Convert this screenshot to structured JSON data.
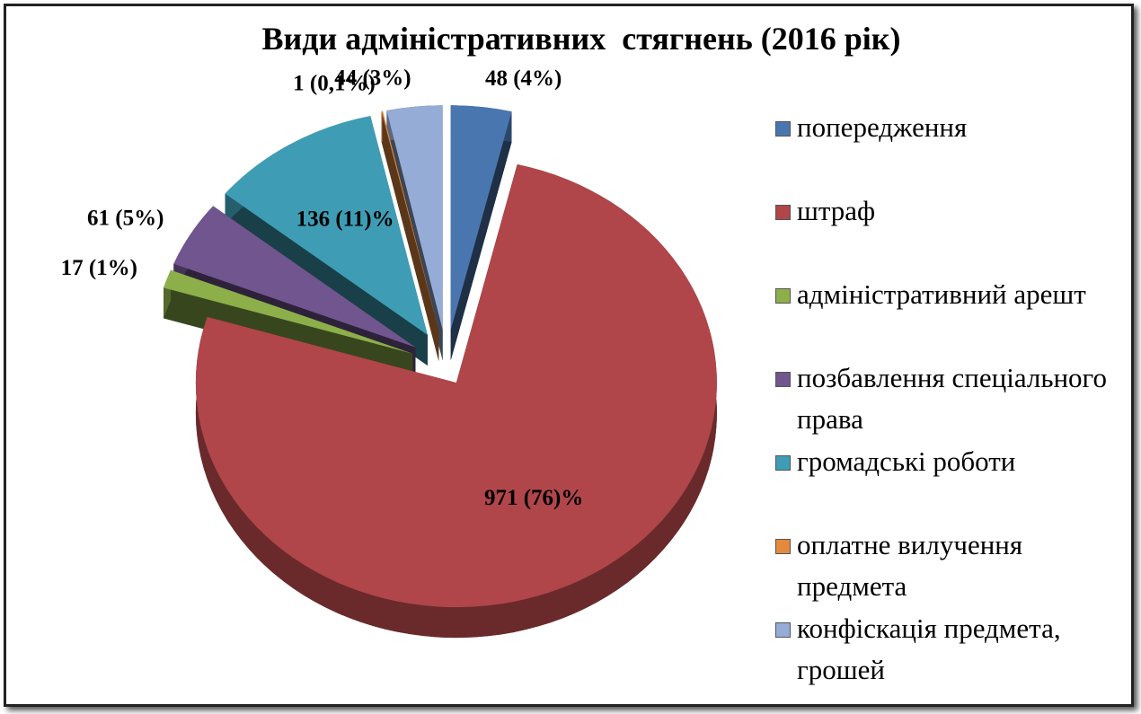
{
  "chart_data": {
    "type": "pie",
    "title": "Види адміністративних  стягнень (2016 рік)",
    "categories": [
      "попередження",
      "штраф",
      "адміністративний арешт",
      "позбавлення спеціального права",
      "громадські роботи",
      "оплатне вилучення предмета",
      "конфіскація предмета, грошей"
    ],
    "values": [
      48,
      971,
      17,
      61,
      136,
      1,
      44
    ],
    "value_labels": [
      "48 (4%)",
      "971 (76)%",
      "17 (1%)",
      "61 (5%)",
      "136 (11)%",
      "1 (0,1%)",
      "44 (3%)"
    ],
    "colors": [
      "#4a76b0",
      "#b0464a",
      "#8caf4a",
      "#71558f",
      "#3e9db5",
      "#e38a3e",
      "#95acd6"
    ],
    "legend": "right"
  }
}
